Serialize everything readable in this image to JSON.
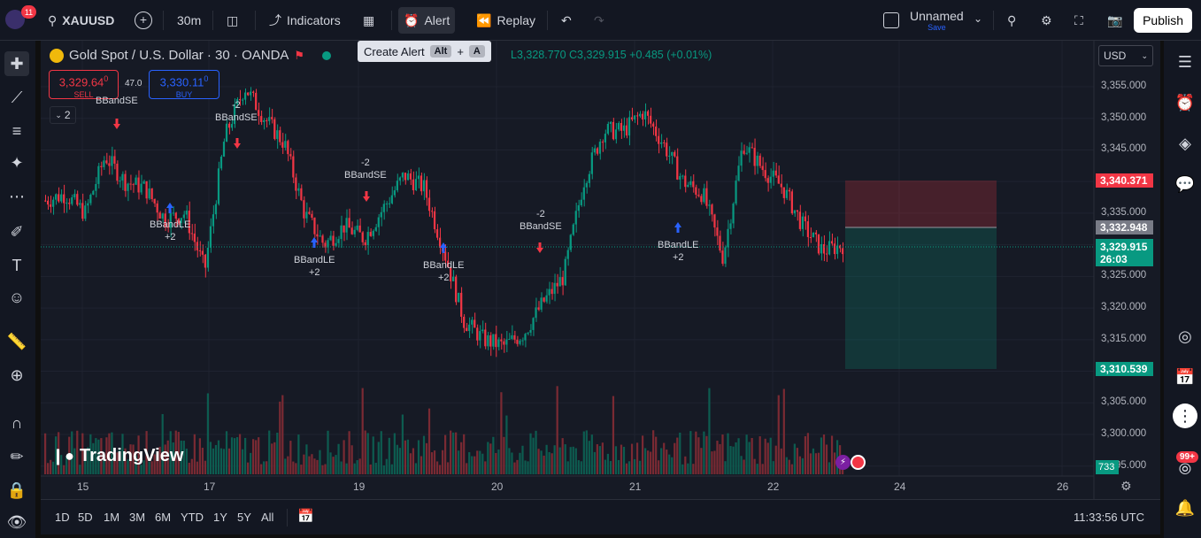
{
  "topbar": {
    "notification_count": "11",
    "symbol": "XAUUSD",
    "interval": "30m",
    "indicators_label": "Indicators",
    "alert_label": "Alert",
    "replay_label": "Replay",
    "layout_name": "Unnamed",
    "layout_status": "Save",
    "publish_label": "Publish"
  },
  "tooltip": {
    "label": "Create Alert",
    "key1": "Alt",
    "plus": "+",
    "key2": "A"
  },
  "legend": {
    "title": "Gold Spot / U.S. Dollar · 30 · OANDA",
    "ohlc_tail": "L3,328.770  C3,329.915  +0.485 (+0.01%)"
  },
  "trade": {
    "sell_price": "3,329.64",
    "sell_sup": "0",
    "sell_label": "SELL",
    "buy_price": "3,330.11",
    "buy_sup": "0",
    "buy_label": "BUY",
    "spread": "47.0",
    "collapse_count": "2"
  },
  "currency": "USD",
  "price_axis": [
    "3,355.000",
    "3,350.000",
    "3,345.000",
    "3,335.000",
    "3,325.000",
    "3,320.000",
    "3,315.000",
    "3,305.000",
    "3,300.000",
    "3,295.000"
  ],
  "price_labels": {
    "stop": "3,340.371",
    "entry": "3,332.948",
    "last": "3,329.915",
    "countdown": "26:03",
    "target": "3,310.539",
    "volume": "733"
  },
  "time_axis": [
    "15",
    "17",
    "19",
    "20",
    "21",
    "22",
    "24",
    "26"
  ],
  "signals": {
    "se1": "BBandSE",
    "se2_qty": "-2",
    "se2": "BBandSE",
    "le1": "BBandLE",
    "le1_qty": "+2",
    "se3_qty": "-2",
    "se3": "BBandSE",
    "le2": "BBandLE",
    "le2_qty": "+2",
    "le3": "BBandLE",
    "le3_qty": "+2",
    "se4_qty": "-2",
    "se4": "BBandSE",
    "le4": "BBandLE",
    "le4_qty": "+2"
  },
  "watermark": "TradingView",
  "bottombar": {
    "ranges": [
      "1D",
      "5D",
      "1M",
      "3M",
      "6M",
      "YTD",
      "1Y",
      "5Y",
      "All"
    ],
    "clock": "11:33:56 UTC"
  },
  "rightbar": {
    "alerts_badge": "99+"
  },
  "chart_data": {
    "type": "candlestick",
    "symbol": "XAUUSD",
    "x_ticks": [
      "15",
      "17",
      "19",
      "20",
      "21",
      "22",
      "24",
      "26"
    ],
    "ylim": [
      3293,
      3360
    ],
    "close_path": [
      3337,
      3338,
      3335,
      3344,
      3340,
      3339,
      3334,
      3335,
      3326,
      3347,
      3355,
      3350,
      3346,
      3335,
      3330,
      3333,
      3331,
      3336,
      3341,
      3339,
      3329,
      3318,
      3315,
      3314,
      3316,
      3321,
      3325,
      3340,
      3348,
      3348,
      3351,
      3346,
      3340,
      3338,
      3328,
      3346,
      3342,
      3339,
      3333,
      3329,
      3330
    ],
    "colors": {
      "up": "#089981",
      "down": "#f23645"
    }
  }
}
